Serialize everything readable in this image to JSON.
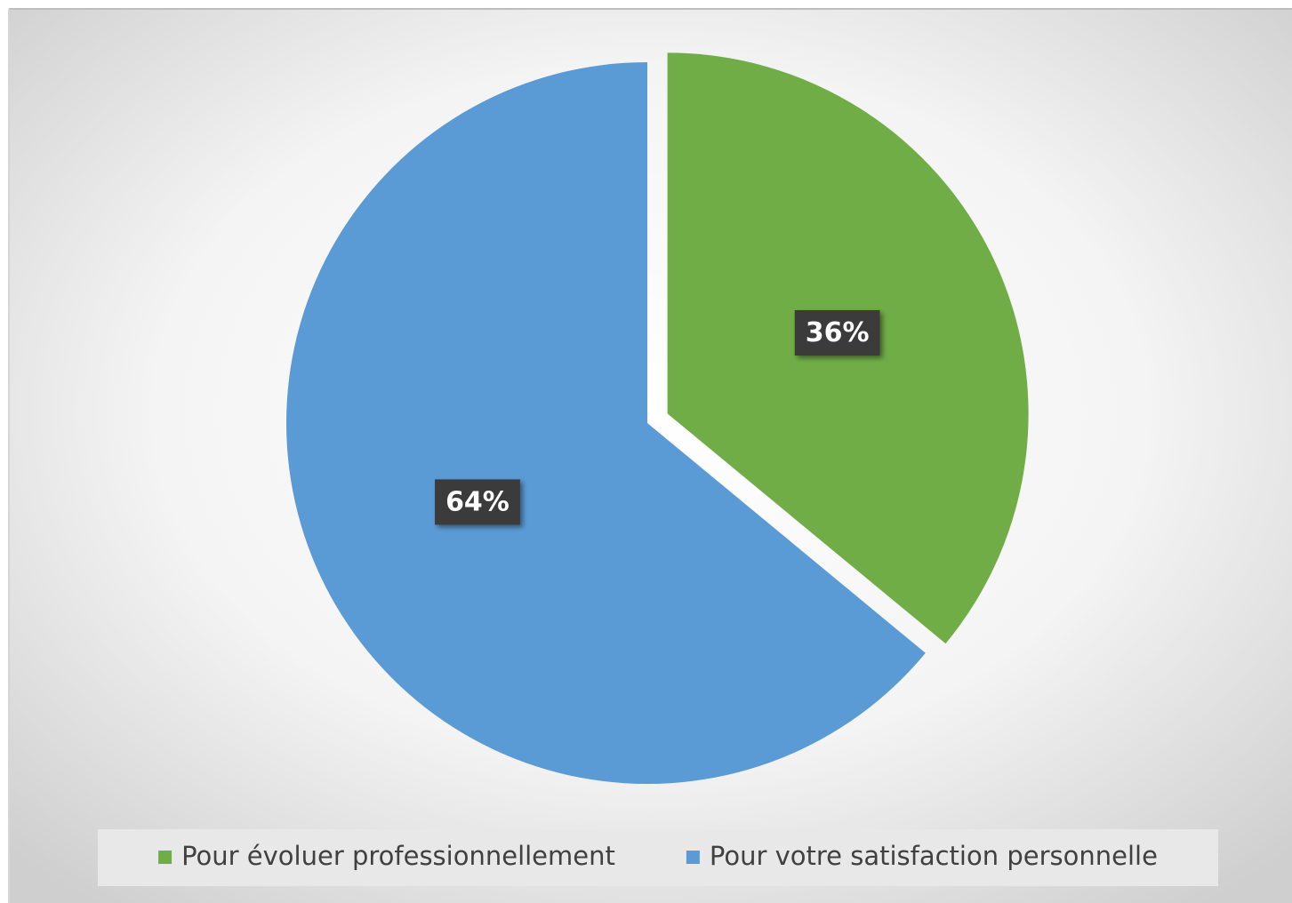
{
  "chart_data": {
    "type": "pie",
    "categories": [
      "Pour évoluer professionnellement",
      "Pour votre satisfaction personnelle"
    ],
    "values": [
      36,
      64
    ],
    "value_labels": [
      "36%",
      "64%"
    ],
    "colors": [
      "#70ad47",
      "#5b9bd5"
    ],
    "legend": "bottom"
  }
}
